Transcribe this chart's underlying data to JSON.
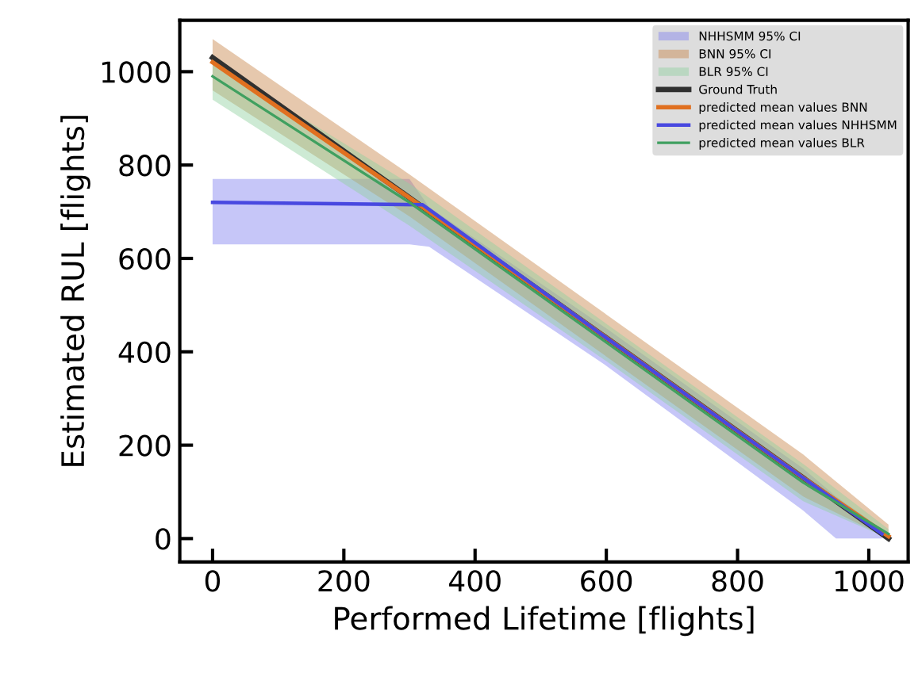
{
  "chart_data": {
    "type": "line",
    "xlabel": "Performed Lifetime [flights]",
    "ylabel": "Estimated RUL [flights]",
    "xlim": [
      -50,
      1060
    ],
    "ylim": [
      -50,
      1110
    ],
    "xticks": [
      0,
      200,
      400,
      600,
      800,
      1000
    ],
    "yticks": [
      0,
      200,
      400,
      600,
      800,
      1000
    ],
    "grid": false,
    "legend": "top right",
    "marker": "none",
    "line_style": "solid",
    "series": [
      {
        "type": "line",
        "name": "NHHSMM 95% CI",
        "color": "#8080f0",
        "x": [
          0,
          300,
          330,
          600,
          900,
          950,
          1020
        ],
        "values": [
          null,
          null,
          null,
          null,
          null,
          null,
          null
        ],
        "lower": [
          630,
          630,
          625,
          370,
          60,
          0,
          0
        ],
        "upper": [
          770,
          770,
          710,
          450,
          150,
          90,
          20
        ]
      },
      {
        "type": "line",
        "name": "BNN 95% CI",
        "color": "#c8864a",
        "x": [
          0,
          300,
          600,
          900,
          1030
        ],
        "values": [
          null,
          null,
          null,
          null,
          null
        ],
        "lower": [
          960,
          690,
          390,
          90,
          0
        ],
        "upper": [
          1070,
          780,
          480,
          180,
          30
        ]
      },
      {
        "type": "line",
        "name": "BLR 95% CI",
        "color": "#90d0a0",
        "x": [
          0,
          300,
          600,
          900,
          1030
        ],
        "values": [
          null,
          null,
          null,
          null,
          null
        ],
        "lower": [
          940,
          670,
          380,
          80,
          0
        ],
        "upper": [
          1020,
          760,
          460,
          160,
          20
        ]
      },
      {
        "type": "line",
        "name": "Ground Truth",
        "color": "#303030",
        "x": [
          0,
          1030
        ],
        "values": [
          1030,
          0
        ]
      },
      {
        "type": "line",
        "name": "predicted mean values BNN",
        "color": "#e07020",
        "x": [
          0,
          300,
          600,
          900,
          1030
        ],
        "values": [
          1020,
          730,
          430,
          130,
          5
        ]
      },
      {
        "type": "line",
        "name": "predicted mean values NHHSMM",
        "color": "#4848e0",
        "x": [
          0,
          320,
          600,
          900,
          1020
        ],
        "values": [
          720,
          715,
          430,
          130,
          10
        ]
      },
      {
        "type": "line",
        "name": "predicted mean values BLR",
        "color": "#40a060",
        "x": [
          0,
          300,
          600,
          900,
          1030
        ],
        "values": [
          990,
          720,
          420,
          120,
          10
        ]
      }
    ]
  }
}
